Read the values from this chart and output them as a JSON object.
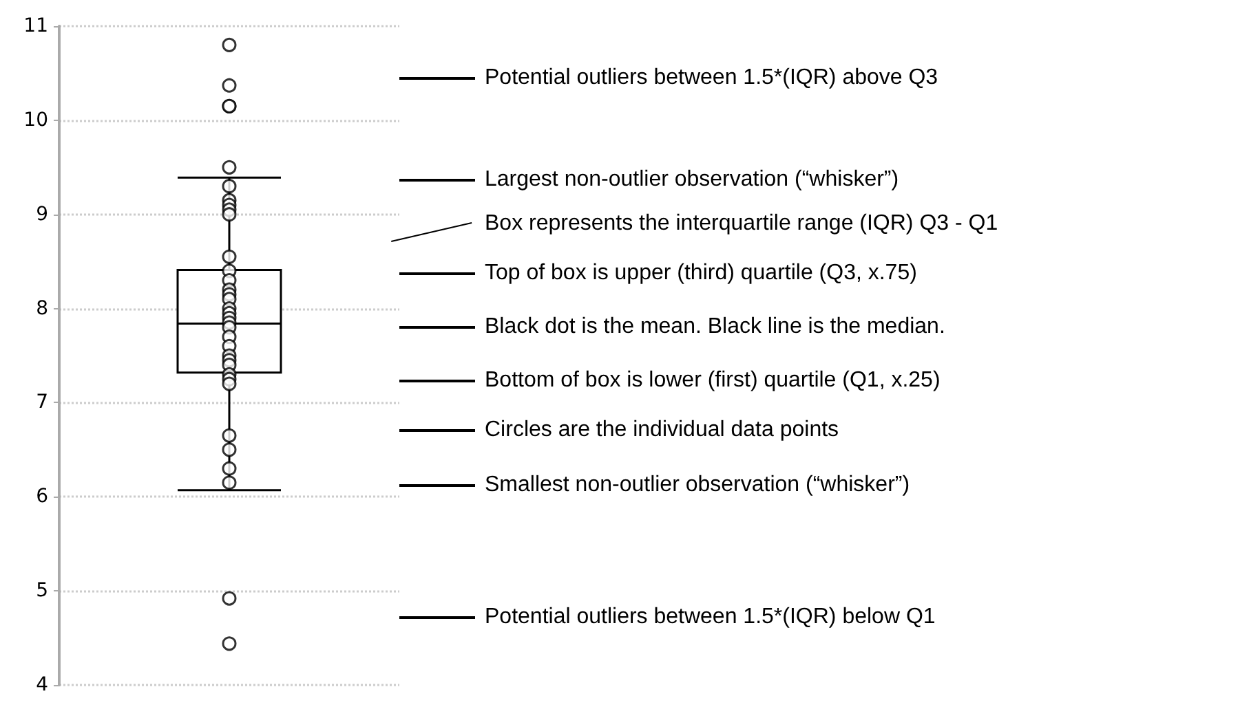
{
  "chart_data": {
    "type": "box",
    "categories": [
      null
    ],
    "boxes": [
      {
        "low": 6.07,
        "q1": 7.32,
        "median": 7.84,
        "q3": 8.41,
        "high": 9.39,
        "outliers": [
          10.8,
          10.37,
          10.15,
          10.15,
          4.92,
          4.44
        ]
      }
    ],
    "series": [
      {
        "type": "scatter",
        "color": "#000000",
        "x": [
          null,
          null,
          null,
          null,
          null,
          null,
          null,
          null,
          null,
          null,
          null,
          null,
          null,
          null,
          null,
          null,
          null,
          null,
          null,
          null,
          null,
          null,
          null,
          null,
          null,
          null,
          null,
          null,
          null
        ],
        "values": [
          9.5,
          9.3,
          9.15,
          9.1,
          9.05,
          9.0,
          8.55,
          8.4,
          8.3,
          8.2,
          8.15,
          8.1,
          8.0,
          7.95,
          7.9,
          7.85,
          7.8,
          7.7,
          7.6,
          7.5,
          7.45,
          7.4,
          7.3,
          7.25,
          7.2,
          6.65,
          6.5,
          6.3,
          6.15
        ]
      }
    ],
    "color": "#000000",
    "ylim": [
      4,
      11
    ],
    "yticks": [
      4,
      5,
      6,
      7,
      8,
      9,
      10,
      11
    ],
    "grid": "y",
    "marker": "circle",
    "annotations": [
      "Potential outliers between 1.5*(IQR) above Q3",
      "Largest non-outlier observation (“whisker”)",
      "Box represents the interquartile range (IQR) Q3 - Q1",
      "Top of box is upper (third) quartile (Q3, x.75)",
      "Black dot is the mean. Black line is the median.",
      "Bottom of box is lower (first) quartile (Q1, x.25)",
      "Circles are the individual data points",
      "Smallest non-outlier observation (“whisker”)",
      "Potential outliers between 1.5*(IQR) below Q1"
    ]
  }
}
